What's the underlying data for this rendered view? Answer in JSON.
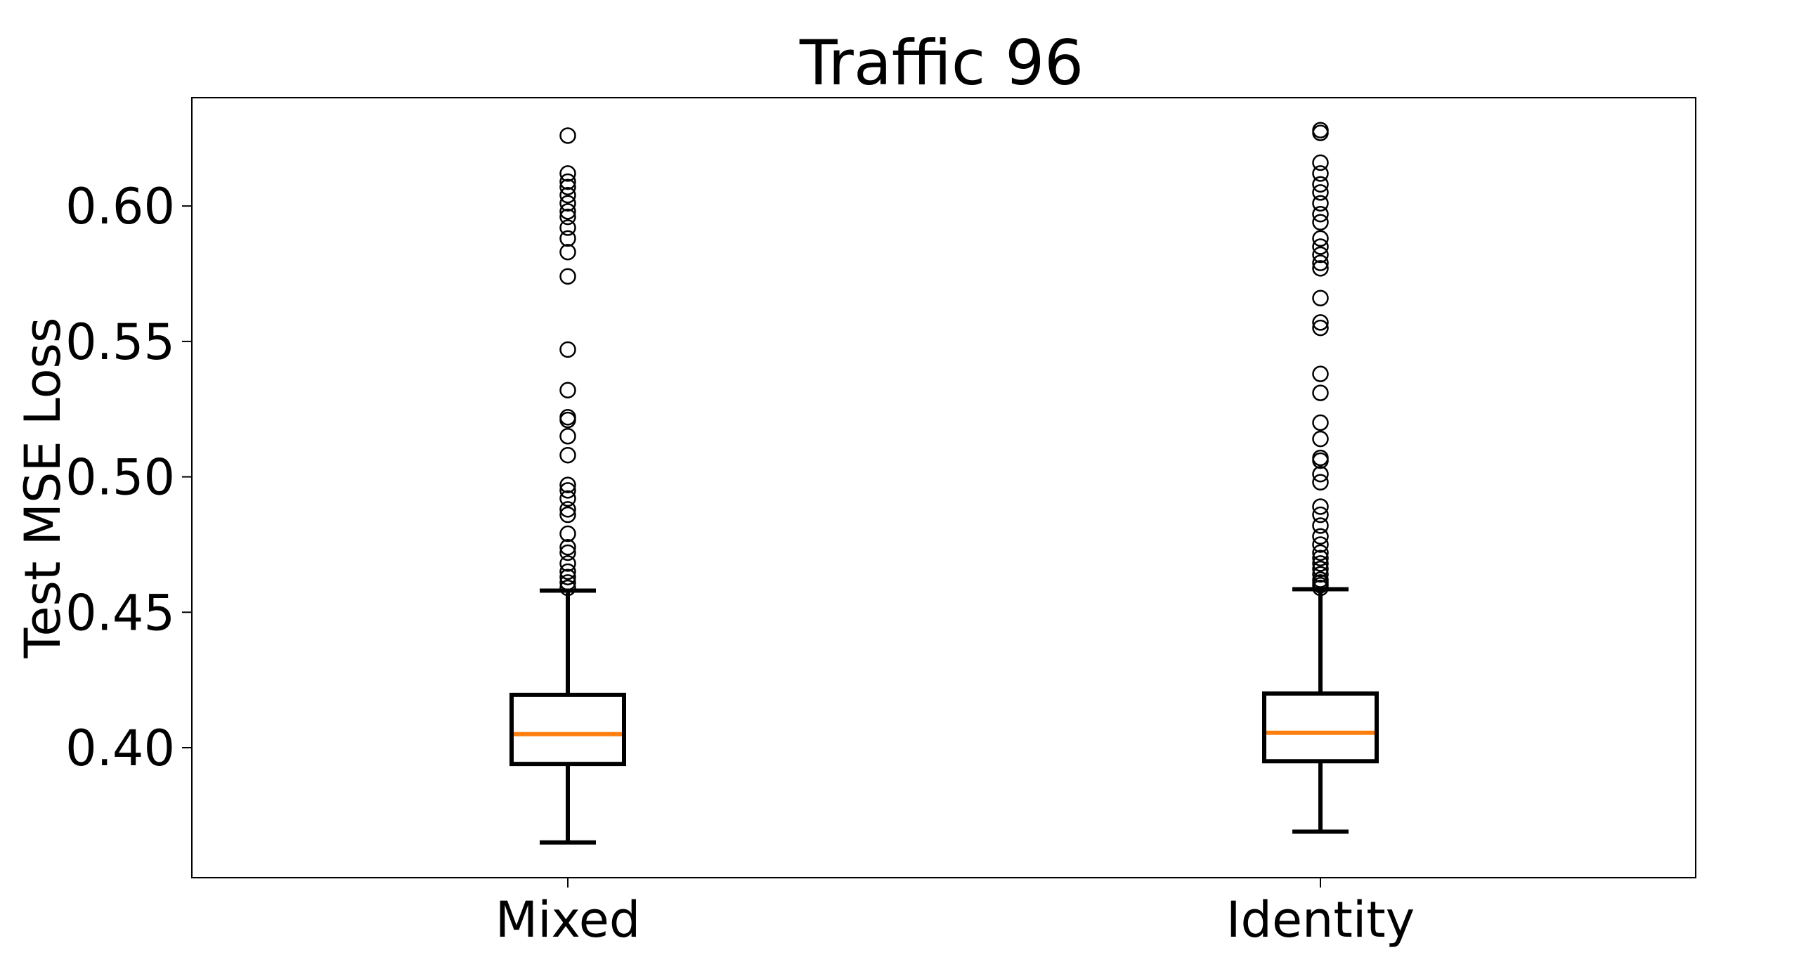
{
  "chart_data": {
    "type": "box",
    "title": "Traffic 96",
    "xlabel": "",
    "ylabel": "Test MSE Loss",
    "categories": [
      "Mixed",
      "Identity"
    ],
    "ylim": [
      0.352,
      0.64
    ],
    "yticks": [
      "0.40",
      "0.45",
      "0.50",
      "0.55",
      "0.60"
    ],
    "ytick_values": [
      0.4,
      0.45,
      0.5,
      0.55,
      0.6
    ],
    "grid": false,
    "colors": {
      "box": "#000000",
      "median": "#ff7f0e",
      "background": "#ffffff"
    },
    "boxes": [
      {
        "name": "Mixed",
        "whisker_low": 0.365,
        "q1": 0.394,
        "median": 0.405,
        "q3": 0.4195,
        "whisker_high": 0.458,
        "outliers": [
          0.626,
          0.612,
          0.609,
          0.607,
          0.604,
          0.601,
          0.598,
          0.596,
          0.592,
          0.588,
          0.583,
          0.574,
          0.547,
          0.532,
          0.522,
          0.521,
          0.515,
          0.508,
          0.497,
          0.495,
          0.492,
          0.488,
          0.486,
          0.479,
          0.474,
          0.472,
          0.468,
          0.465,
          0.463,
          0.461,
          0.459
        ]
      },
      {
        "name": "Identity",
        "whisker_low": 0.369,
        "q1": 0.395,
        "median": 0.4055,
        "q3": 0.42,
        "whisker_high": 0.4585,
        "outliers": [
          0.628,
          0.627,
          0.616,
          0.612,
          0.608,
          0.605,
          0.601,
          0.597,
          0.594,
          0.588,
          0.585,
          0.582,
          0.579,
          0.577,
          0.566,
          0.557,
          0.555,
          0.538,
          0.531,
          0.52,
          0.514,
          0.507,
          0.506,
          0.501,
          0.498,
          0.489,
          0.486,
          0.482,
          0.478,
          0.475,
          0.472,
          0.47,
          0.468,
          0.466,
          0.464,
          0.462,
          0.461,
          0.46,
          0.459
        ]
      }
    ]
  }
}
